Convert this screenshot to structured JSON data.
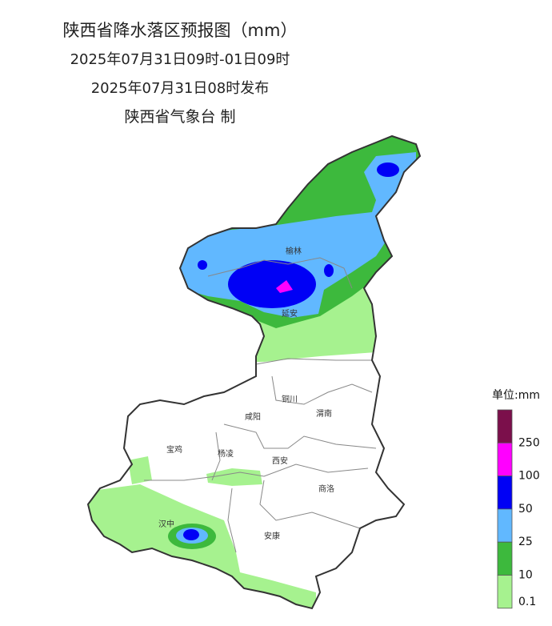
{
  "header": {
    "title": "陕西省降水落区预报图（mm）",
    "valid_period": "2025年07月31日09时-01日09时",
    "issued": "2025年07月31日08时发布",
    "issuer": "陕西省气象台 制"
  },
  "cities": [
    {
      "name": "榆林"
    },
    {
      "name": "延安"
    },
    {
      "name": "铜川"
    },
    {
      "name": "渭南"
    },
    {
      "name": "咸阳"
    },
    {
      "name": "宝鸡"
    },
    {
      "name": "杨凌"
    },
    {
      "name": "西安"
    },
    {
      "name": "商洛"
    },
    {
      "name": "汉中"
    },
    {
      "name": "安康"
    }
  ],
  "legend": {
    "title": "单位:mm",
    "levels": [
      250,
      100,
      50,
      25,
      10,
      0.1
    ],
    "colors": [
      "#7b0f4b",
      "#ff00ff",
      "#0000f5",
      "#61b8ff",
      "#3db93d",
      "#a6f28f"
    ]
  }
}
